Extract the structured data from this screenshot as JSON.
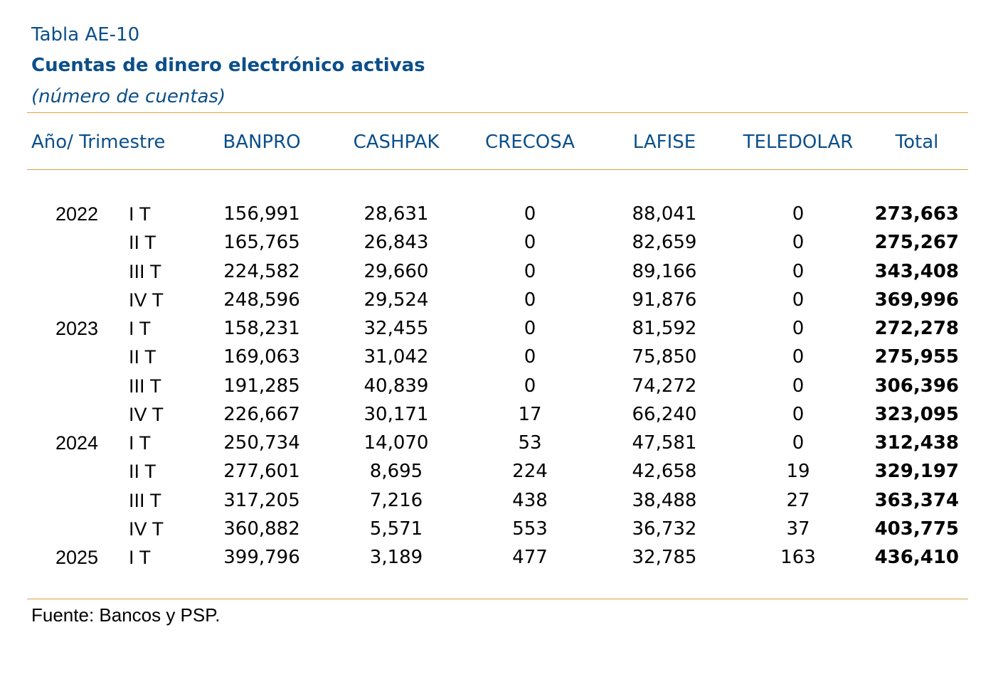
{
  "table": {
    "label": "Tabla AE-10",
    "title": "Cuentas de dinero electrónico activas",
    "subtitle": "(número de cuentas)",
    "headers": {
      "period": "Año/ Trimestre",
      "banpro": "BANPRO",
      "cashpak": "CASHPAK",
      "crecosa": "CRECOSA",
      "lafise": "LAFISE",
      "teledolar": "TELEDOLAR",
      "total": "Total"
    },
    "rows": [
      {
        "year": "2022",
        "quarter": "I T",
        "banpro": "156,991",
        "cashpak": "28,631",
        "crecosa": "0",
        "lafise": "88,041",
        "teledolar": "0",
        "total": "273,663"
      },
      {
        "year": "",
        "quarter": "II T",
        "banpro": "165,765",
        "cashpak": "26,843",
        "crecosa": "0",
        "lafise": "82,659",
        "teledolar": "0",
        "total": "275,267"
      },
      {
        "year": "",
        "quarter": "III T",
        "banpro": "224,582",
        "cashpak": "29,660",
        "crecosa": "0",
        "lafise": "89,166",
        "teledolar": "0",
        "total": "343,408"
      },
      {
        "year": "",
        "quarter": "IV T",
        "banpro": "248,596",
        "cashpak": "29,524",
        "crecosa": "0",
        "lafise": "91,876",
        "teledolar": "0",
        "total": "369,996"
      },
      {
        "year": "2023",
        "quarter": "I T",
        "banpro": "158,231",
        "cashpak": "32,455",
        "crecosa": "0",
        "lafise": "81,592",
        "teledolar": "0",
        "total": "272,278"
      },
      {
        "year": "",
        "quarter": "II T",
        "banpro": "169,063",
        "cashpak": "31,042",
        "crecosa": "0",
        "lafise": "75,850",
        "teledolar": "0",
        "total": "275,955"
      },
      {
        "year": "",
        "quarter": "III T",
        "banpro": "191,285",
        "cashpak": "40,839",
        "crecosa": "0",
        "lafise": "74,272",
        "teledolar": "0",
        "total": "306,396"
      },
      {
        "year": "",
        "quarter": "IV T",
        "banpro": "226,667",
        "cashpak": "30,171",
        "crecosa": "17",
        "lafise": "66,240",
        "teledolar": "0",
        "total": "323,095"
      },
      {
        "year": "2024",
        "quarter": "I T",
        "banpro": "250,734",
        "cashpak": "14,070",
        "crecosa": "53",
        "lafise": "47,581",
        "teledolar": "0",
        "total": "312,438"
      },
      {
        "year": "",
        "quarter": "II T",
        "banpro": "277,601",
        "cashpak": "8,695",
        "crecosa": "224",
        "lafise": "42,658",
        "teledolar": "19",
        "total": "329,197"
      },
      {
        "year": "",
        "quarter": "III T",
        "banpro": "317,205",
        "cashpak": "7,216",
        "crecosa": "438",
        "lafise": "38,488",
        "teledolar": "27",
        "total": "363,374"
      },
      {
        "year": "",
        "quarter": "IV T",
        "banpro": "360,882",
        "cashpak": "5,571",
        "crecosa": "553",
        "lafise": "36,732",
        "teledolar": "37",
        "total": "403,775"
      },
      {
        "year": "2025",
        "quarter": "I T",
        "banpro": "399,796",
        "cashpak": "3,189",
        "crecosa": "477",
        "lafise": "32,785",
        "teledolar": "163",
        "total": "436,410"
      }
    ],
    "source": "Fuente: Bancos y PSP."
  },
  "colors": {
    "title_blue": "#0b4f8a",
    "rule_gold": "#d9a441"
  }
}
